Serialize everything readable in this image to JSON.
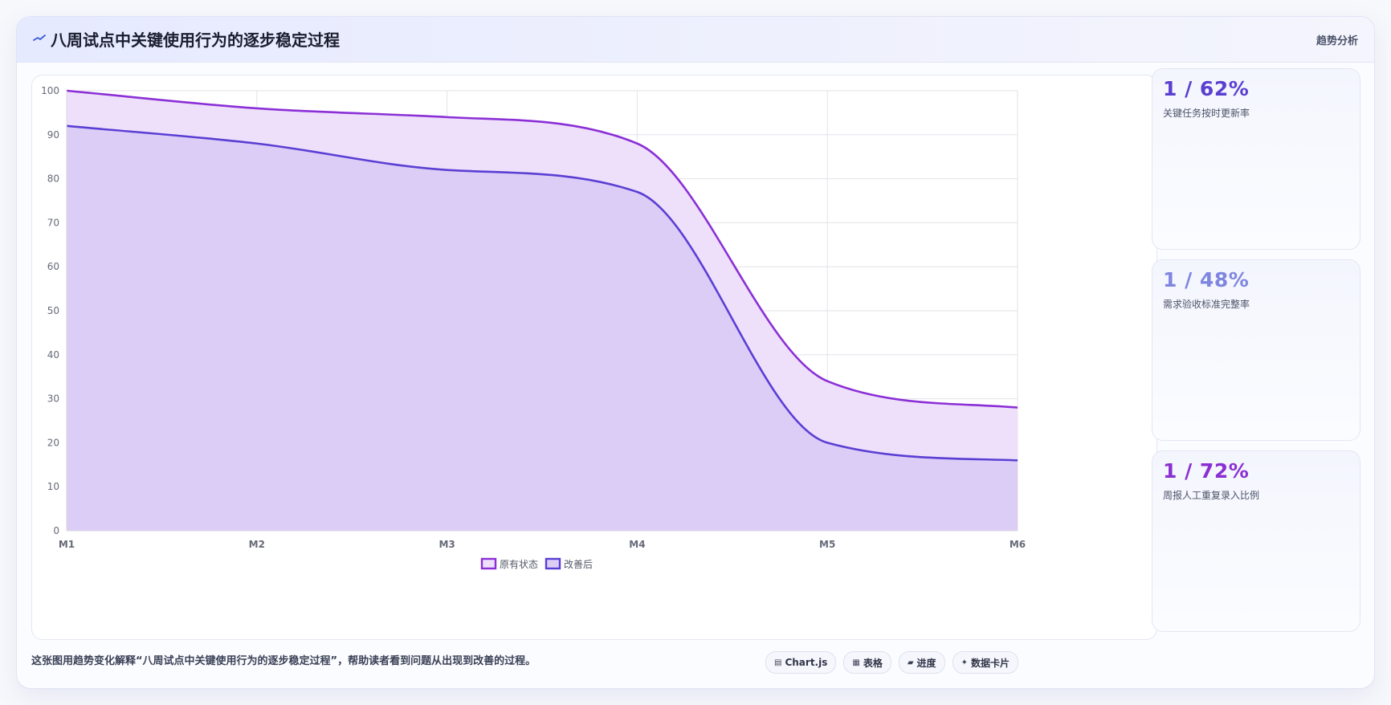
{
  "header": {
    "title": "八周试点中关键使用行为的逐步稳定过程",
    "tag": "趋势分析"
  },
  "kpis": [
    {
      "value": "1 / 62%",
      "label": "关键任务按时更新率",
      "color": "#5b3fd0"
    },
    {
      "value": "1 / 48%",
      "label": "需求验收标准完整率",
      "color": "#7f86e0"
    },
    {
      "value": "1 / 72%",
      "label": "周报人工重复录入比例",
      "color": "#8a2fd1"
    }
  ],
  "caption": "这张图用趋势变化解释“八周试点中关键使用行为的逐步稳定过程”，帮助读者看到问题从出现到改善的过程。",
  "chips": [
    {
      "icon": "chart-icon",
      "glyph": "▤",
      "label": "Chart.js"
    },
    {
      "icon": "table-icon",
      "glyph": "▦",
      "label": "表格"
    },
    {
      "icon": "progress-icon",
      "glyph": "▰",
      "label": "进度"
    },
    {
      "icon": "sparkle-icon",
      "glyph": "✦",
      "label": "数据卡片"
    }
  ],
  "chart_data": {
    "type": "area",
    "categories": [
      "M1",
      "M2",
      "M3",
      "M4",
      "M5",
      "M6"
    ],
    "ylim": [
      0,
      100
    ],
    "yticks": [
      0,
      10,
      20,
      30,
      40,
      50,
      60,
      70,
      80,
      90,
      100
    ],
    "grid": true,
    "legend_position": "bottom-center",
    "series": [
      {
        "name": "原有状态",
        "values": [
          100,
          96,
          94,
          88,
          34,
          28
        ],
        "color": "#8b2fd6",
        "fill": "#eee0fa"
      },
      {
        "name": "改善后",
        "values": [
          92,
          88,
          82,
          77,
          20,
          16
        ],
        "color": "#5a3fd4",
        "fill": "#dccdf6"
      }
    ]
  }
}
